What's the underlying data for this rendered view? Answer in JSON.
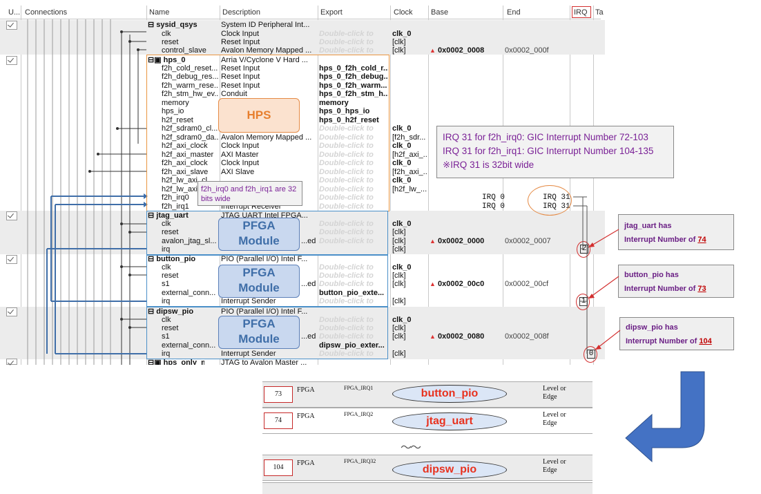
{
  "columns": {
    "use": "U...",
    "connections": "Connections",
    "name": "Name",
    "description": "Description",
    "export": "Export",
    "clock": "Clock",
    "base": "Base",
    "end": "End",
    "irq": "IRQ",
    "tags": "Ta"
  },
  "dbl": "Double-click to",
  "sysid": {
    "name": "sysid_qsys",
    "desc": "System ID Peripheral Int...",
    "rows": [
      {
        "name": "clk",
        "desc": "Clock Input",
        "clock": "clk_0"
      },
      {
        "name": "reset",
        "desc": "Reset Input",
        "clock": "[clk]"
      },
      {
        "name": "control_slave",
        "desc": "Avalon Memory Mapped ...",
        "clock": "[clk]",
        "base": "0x0002_0008",
        "end": "0x0002_000f"
      }
    ]
  },
  "hps": {
    "name": "hps_0",
    "desc": "Arria V/Cyclone V Hard ...",
    "label": "HPS",
    "rows": [
      {
        "name": "f2h_cold_reset...",
        "desc": "Reset Input",
        "export": "hps_0_f2h_cold_r..."
      },
      {
        "name": "f2h_debug_res...",
        "desc": "Reset Input",
        "export": "hps_0_f2h_debug..."
      },
      {
        "name": "f2h_warm_rese...",
        "desc": "Reset Input",
        "export": "hps_0_f2h_warm..."
      },
      {
        "name": "f2h_stm_hw_ev...",
        "desc": "Conduit",
        "export": "hps_0_f2h_stm_h..."
      },
      {
        "name": "memory",
        "desc": "",
        "export": "memory"
      },
      {
        "name": "hps_io",
        "desc": "",
        "export": "hps_0_hps_io"
      },
      {
        "name": "h2f_reset",
        "desc": "",
        "export": "hps_0_h2f_reset"
      },
      {
        "name": "h2f_sdram0_cl...",
        "desc": "",
        "export": "",
        "clock": "clk_0"
      },
      {
        "name": "h2f_sdram0_da...",
        "desc": "Avalon Memory Mapped ...",
        "export": "",
        "clock": "[f2h_sdr..."
      },
      {
        "name": "h2f_axi_clock",
        "desc": "Clock Input",
        "export": "",
        "clock": "clk_0"
      },
      {
        "name": "h2f_axi_master",
        "desc": "AXI Master",
        "export": "",
        "clock": "[h2f_axi_..."
      },
      {
        "name": "f2h_axi_clock",
        "desc": "Clock Input",
        "export": "",
        "clock": "clk_0"
      },
      {
        "name": "f2h_axi_slave",
        "desc": "AXI Slave",
        "export": "",
        "clock": "[f2h_axi_..."
      },
      {
        "name": "h2f_lw_axi_cl...",
        "desc": "",
        "export": "",
        "clock": "clk_0"
      },
      {
        "name": "h2f_lw_axi_m...",
        "desc": "",
        "export": "",
        "clock": "[h2f_lw_..."
      },
      {
        "name": "f2h_irq0",
        "desc": "",
        "export": "",
        "irq_left": "IRQ 0",
        "irq_right": "IRQ 31"
      },
      {
        "name": "f2h_irq1",
        "desc": "Interrupt Receiver",
        "export": "",
        "irq_left": "IRQ 0",
        "irq_right": "IRQ 31"
      }
    ]
  },
  "jtag": {
    "name": "jtag_uart",
    "desc": "JTAG UART Intel FPGA...",
    "label1": "PFGA",
    "label2": "Module",
    "rows": [
      {
        "name": "clk",
        "desc": "",
        "clock": "clk_0"
      },
      {
        "name": "reset",
        "desc": "",
        "clock": "[clk]"
      },
      {
        "name": "avalon_jtag_sl...",
        "desc": "...ed ...",
        "clock": "[clk]",
        "base": "0x0002_0000",
        "end": "0x0002_0007"
      },
      {
        "name": "irq",
        "desc": "Interrupt Sender",
        "clock": "[clk]",
        "irq": "2"
      }
    ]
  },
  "button": {
    "name": "button_pio",
    "desc": "PIO (Parallel I/O) Intel F...",
    "label1": "PFGA",
    "label2": "Module",
    "rows": [
      {
        "name": "clk",
        "desc": "",
        "clock": "clk_0",
        "export": ""
      },
      {
        "name": "reset",
        "desc": "",
        "clock": "[clk]",
        "export": ""
      },
      {
        "name": "s1",
        "desc": "...ed ...",
        "clock": "[clk]",
        "export": "",
        "base": "0x0002_00c0",
        "end": "0x0002_00cf"
      },
      {
        "name": "external_conn...",
        "desc": "",
        "export": "button_pio_exte..."
      },
      {
        "name": "irq",
        "desc": "Interrupt Sender",
        "clock": "[clk]",
        "export": "",
        "irq": "1"
      }
    ]
  },
  "dipsw": {
    "name": "dipsw_pio",
    "desc": "PIO (Parallel I/O) Intel F...",
    "label1": "PFGA",
    "label2": "Module",
    "rows": [
      {
        "name": "clk",
        "desc": "",
        "clock": "clk_0",
        "export": ""
      },
      {
        "name": "reset",
        "desc": "",
        "clock": "[clk]",
        "export": ""
      },
      {
        "name": "s1",
        "desc": "...ed ...",
        "clock": "[clk]",
        "export": "",
        "base": "0x0002_0080",
        "end": "0x0002_008f"
      },
      {
        "name": "external_conn...",
        "desc": "",
        "export": "dipsw_pio_exter..."
      },
      {
        "name": "irq",
        "desc": "Interrupt Sender",
        "clock": "[clk]",
        "export": "",
        "irq": "0"
      }
    ]
  },
  "last_row": {
    "name": "hps_only_m...",
    "desc": "JTAG to Avalon Master ..."
  },
  "callouts": {
    "irq_info": [
      "IRQ 31 for f2h_irq0: GIC Interrupt Number 72-103",
      "IRQ 31 for f2h_irq1: GIC Interrupt Number 104-135",
      "※IRQ 31 is 32bit wide"
    ],
    "irq_width": "f2h_irq0 and f2h_irq1 are 32 bits wide",
    "jtag": {
      "line1": "jtag_uart has",
      "line2": "Interrupt Number of ",
      "num": "74"
    },
    "button": {
      "line1": "button_pio has",
      "line2": "Interrupt Number of ",
      "num": "73"
    },
    "dipsw": {
      "line1": "dipsw_pio has",
      "line2": "Interrupt Number of ",
      "num": "104"
    }
  },
  "table": {
    "rows": [
      {
        "num": "73",
        "type": "FPGA",
        "irq": "FPGA_IRQ1",
        "label": "button_pio",
        "mode1": "Level or",
        "mode2": "Edge"
      },
      {
        "num": "74",
        "type": "FPGA",
        "irq": "FPGA_IRQ2",
        "label": "jtag_uart",
        "mode1": "Level or",
        "mode2": "Edge"
      },
      {
        "num": "104",
        "type": "FPGA",
        "irq": "FPGA_IRQ32",
        "label": "dipsw_pio",
        "mode1": "Level or",
        "mode2": "Edge"
      }
    ],
    "ellipsis": "〜〜"
  },
  "colors": {
    "accent_orange": "#e77f2e",
    "module_blue": "#3f6ea8",
    "callout_purple": "#7a2196",
    "highlight_red": "#c62828",
    "arrow_blue": "#4472c4"
  }
}
